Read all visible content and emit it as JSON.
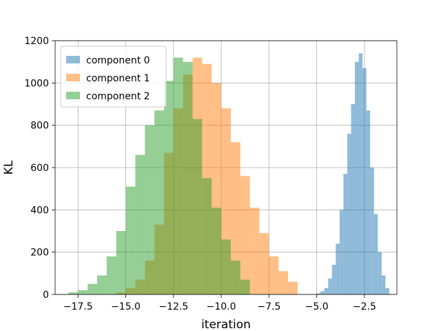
{
  "chart_data": {
    "type": "bar",
    "subtype": "histogram",
    "title": "",
    "xlabel": "iteration",
    "ylabel": "KL",
    "xlim": [
      -18.7,
      -0.8
    ],
    "ylim": [
      0,
      1200
    ],
    "xticks": [
      -17.5,
      -15.0,
      -12.5,
      -10.0,
      -7.5,
      -5.0,
      -2.5
    ],
    "xtick_labels": [
      "−17.5",
      "−15.0",
      "−12.5",
      "−10.0",
      "−7.5",
      "−5.0",
      "−2.5"
    ],
    "yticks": [
      0,
      200,
      400,
      600,
      800,
      1000,
      1200
    ],
    "ytick_labels": [
      "0",
      "200",
      "400",
      "600",
      "800",
      "1000",
      "1200"
    ],
    "grid": true,
    "legend_position": "top-left",
    "series": [
      {
        "name": "component 0",
        "color": "#1f77b4",
        "alpha": 0.5,
        "bin_edges": [
          -5.0,
          -4.8,
          -4.6,
          -4.4,
          -4.2,
          -4.0,
          -3.8,
          -3.6,
          -3.4,
          -3.2,
          -3.0,
          -2.8,
          -2.6,
          -2.4,
          -2.2,
          -2.0,
          -1.8,
          -1.6,
          -1.4,
          -1.2
        ],
        "values": [
          5,
          15,
          30,
          75,
          140,
          240,
          400,
          570,
          760,
          900,
          1100,
          1140,
          1070,
          870,
          600,
          380,
          200,
          90,
          30,
          10
        ]
      },
      {
        "name": "component 1",
        "color": "#ff7f0e",
        "alpha": 0.5,
        "bin_edges": [
          -15.5,
          -15.0,
          -14.5,
          -14.0,
          -13.5,
          -13.0,
          -12.5,
          -12.0,
          -11.5,
          -11.0,
          -10.5,
          -10.0,
          -9.5,
          -9.0,
          -8.5,
          -8.0,
          -7.5,
          -7.0,
          -6.5,
          -6.0
        ],
        "values": [
          10,
          30,
          70,
          160,
          330,
          670,
          880,
          1040,
          1120,
          1090,
          1000,
          880,
          720,
          560,
          410,
          290,
          180,
          110,
          60,
          15
        ]
      },
      {
        "name": "component 2",
        "color": "#2ca02c",
        "alpha": 0.5,
        "bin_edges": [
          -18.0,
          -17.5,
          -17.0,
          -16.5,
          -16.0,
          -15.5,
          -15.0,
          -14.5,
          -14.0,
          -13.5,
          -13.0,
          -12.5,
          -12.0,
          -11.5,
          -11.0,
          -10.5,
          -10.0,
          -9.5,
          -9.0,
          -8.5
        ],
        "values": [
          10,
          20,
          50,
          90,
          180,
          300,
          510,
          660,
          800,
          870,
          1010,
          1120,
          1100,
          830,
          550,
          410,
          260,
          160,
          70,
          30
        ]
      }
    ]
  }
}
